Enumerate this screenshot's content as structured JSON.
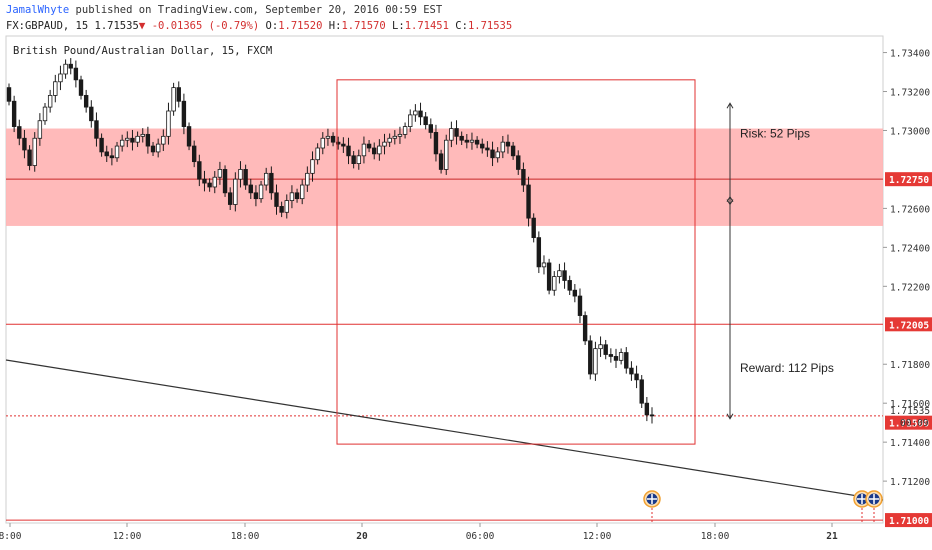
{
  "header": {
    "author": "JamalWhyte",
    "published_text": "published on TradingView.com, September 20, 2016 00:59 EST",
    "symbol": "FX:GBPAUD, 15",
    "last": "1.71535",
    "change": "-0.01365 (-0.79%)",
    "o_label": "O:",
    "o": "1.71520",
    "h_label": "H:",
    "h": "1.71570",
    "l_label": "L:",
    "l": "1.71451",
    "c_label": "C:",
    "c": "1.71535"
  },
  "symbol_title": "British Pound/Australian Dollar, 15, FXCM",
  "colors": {
    "zone": "#ffb3b3",
    "red_line": "#e03030",
    "candle": "#1a1a1a",
    "axis_label_red": "#e53935",
    "trend_line": "#333333",
    "price_label_white": "#ffffff"
  },
  "price_axis": {
    "ticks": [
      "1.73400",
      "1.73200",
      "1.73000",
      "1.72600",
      "1.72400",
      "1.72200",
      "1.71800",
      "1.71600",
      "1.71400",
      "1.71200"
    ],
    "highlighted": [
      {
        "value": "1.72750",
        "y": 1.7275
      },
      {
        "value": "1.72005",
        "y": 1.72005
      },
      {
        "value": "1.71500",
        "y": 1.715
      },
      {
        "value": "1.71000",
        "y": 1.71
      }
    ],
    "current_price": "1.71535",
    "countdown": "00:09"
  },
  "time_axis": {
    "labels": [
      "8:00",
      "12:00",
      "18:00",
      "20",
      "06:00",
      "12:00",
      "18:00",
      "21"
    ]
  },
  "annotations": {
    "risk": "Risk: 52 Pips",
    "reward": "Reward: 112 Pips"
  },
  "chart_data": {
    "type": "candlestick",
    "title": "British Pound/Australian Dollar, 15, FXCM",
    "ylim": [
      1.70985,
      1.73485
    ],
    "levels": {
      "zone_top": 1.7301,
      "zone_bottom": 1.7251,
      "entry": 1.7275,
      "target": 1.72005,
      "stop_line": 1.715,
      "bottom_line": 1.71,
      "current": 1.71535,
      "box_top": 1.7326,
      "box_bottom": 1.7139
    },
    "closes": [
      1.7315,
      1.7302,
      1.7296,
      1.729,
      1.7282,
      1.7296,
      1.7305,
      1.7312,
      1.7318,
      1.7325,
      1.7329,
      1.7334,
      1.7332,
      1.7326,
      1.7318,
      1.7312,
      1.7305,
      1.7296,
      1.7289,
      1.7287,
      1.7286,
      1.7292,
      1.7295,
      1.7296,
      1.7294,
      1.7297,
      1.7298,
      1.7292,
      1.7289,
      1.7293,
      1.7297,
      1.731,
      1.7322,
      1.7315,
      1.7302,
      1.7292,
      1.7284,
      1.7275,
      1.7273,
      1.7271,
      1.7276,
      1.728,
      1.7268,
      1.7262,
      1.7275,
      1.728,
      1.7272,
      1.7268,
      1.7265,
      1.7272,
      1.7278,
      1.7268,
      1.7261,
      1.7258,
      1.7264,
      1.7268,
      1.7265,
      1.7272,
      1.7278,
      1.7285,
      1.7291,
      1.7296,
      1.7297,
      1.7294,
      1.7293,
      1.7292,
      1.7287,
      1.7283,
      1.7287,
      1.7293,
      1.7291,
      1.7288,
      1.7292,
      1.7294,
      1.7296,
      1.7297,
      1.7298,
      1.7302,
      1.7308,
      1.731,
      1.7307,
      1.7303,
      1.7299,
      1.7288,
      1.728,
      1.7295,
      1.7301,
      1.7297,
      1.7295,
      1.7294,
      1.7295,
      1.7293,
      1.7291,
      1.729,
      1.7286,
      1.7289,
      1.7294,
      1.7292,
      1.7287,
      1.728,
      1.7272,
      1.7255,
      1.7245,
      1.723,
      1.7232,
      1.7218,
      1.7225,
      1.7228,
      1.7223,
      1.7218,
      1.7215,
      1.7205,
      1.7192,
      1.7175,
      1.7188,
      1.719,
      1.7185,
      1.7184,
      1.7182,
      1.7186,
      1.7178,
      1.7175,
      1.7172,
      1.716,
      1.7154,
      1.71535
    ],
    "x_labels": [
      "8:00",
      "12:00",
      "18:00",
      "20",
      "06:00",
      "12:00",
      "18:00",
      "21"
    ]
  }
}
